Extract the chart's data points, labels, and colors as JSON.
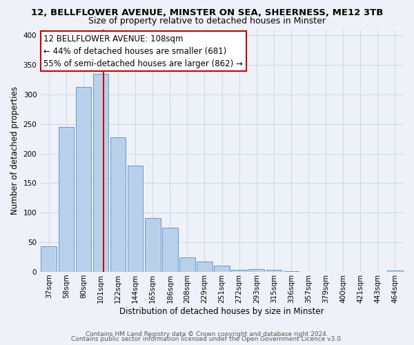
{
  "title": "12, BELLFLOWER AVENUE, MINSTER ON SEA, SHEERNESS, ME12 3TB",
  "subtitle": "Size of property relative to detached houses in Minster",
  "xlabel": "Distribution of detached houses by size in Minster",
  "ylabel": "Number of detached properties",
  "bar_labels": [
    "37sqm",
    "58sqm",
    "80sqm",
    "101sqm",
    "122sqm",
    "144sqm",
    "165sqm",
    "186sqm",
    "208sqm",
    "229sqm",
    "251sqm",
    "272sqm",
    "293sqm",
    "315sqm",
    "336sqm",
    "357sqm",
    "379sqm",
    "400sqm",
    "421sqm",
    "443sqm",
    "464sqm"
  ],
  "bar_heights": [
    43,
    245,
    313,
    335,
    228,
    180,
    91,
    75,
    25,
    18,
    10,
    4,
    5,
    4,
    1,
    0,
    0,
    0,
    0,
    0,
    2
  ],
  "bar_color": "#b8d0ea",
  "bar_edge_color": "#6699cc",
  "vline_x": 3.18,
  "annotation_line1": "12 BELLFLOWER AVENUE: 108sqm",
  "annotation_line2": "← 44% of detached houses are smaller (681)",
  "annotation_line3": "55% of semi-detached houses are larger (862) →",
  "annotation_box_color": "#ffffff",
  "annotation_border_color": "#cc0000",
  "vline_color": "#cc0000",
  "ylim": [
    0,
    410
  ],
  "footer1": "Contains HM Land Registry data © Crown copyright and database right 2024.",
  "footer2": "Contains public sector information licensed under the Open Government Licence v3.0.",
  "bg_color": "#eef2f8",
  "grid_color": "#d0d8e8",
  "title_fontsize": 9.5,
  "subtitle_fontsize": 9,
  "axis_label_fontsize": 8.5,
  "tick_fontsize": 7.5,
  "annotation_fontsize": 8.5,
  "footer_fontsize": 6.5
}
